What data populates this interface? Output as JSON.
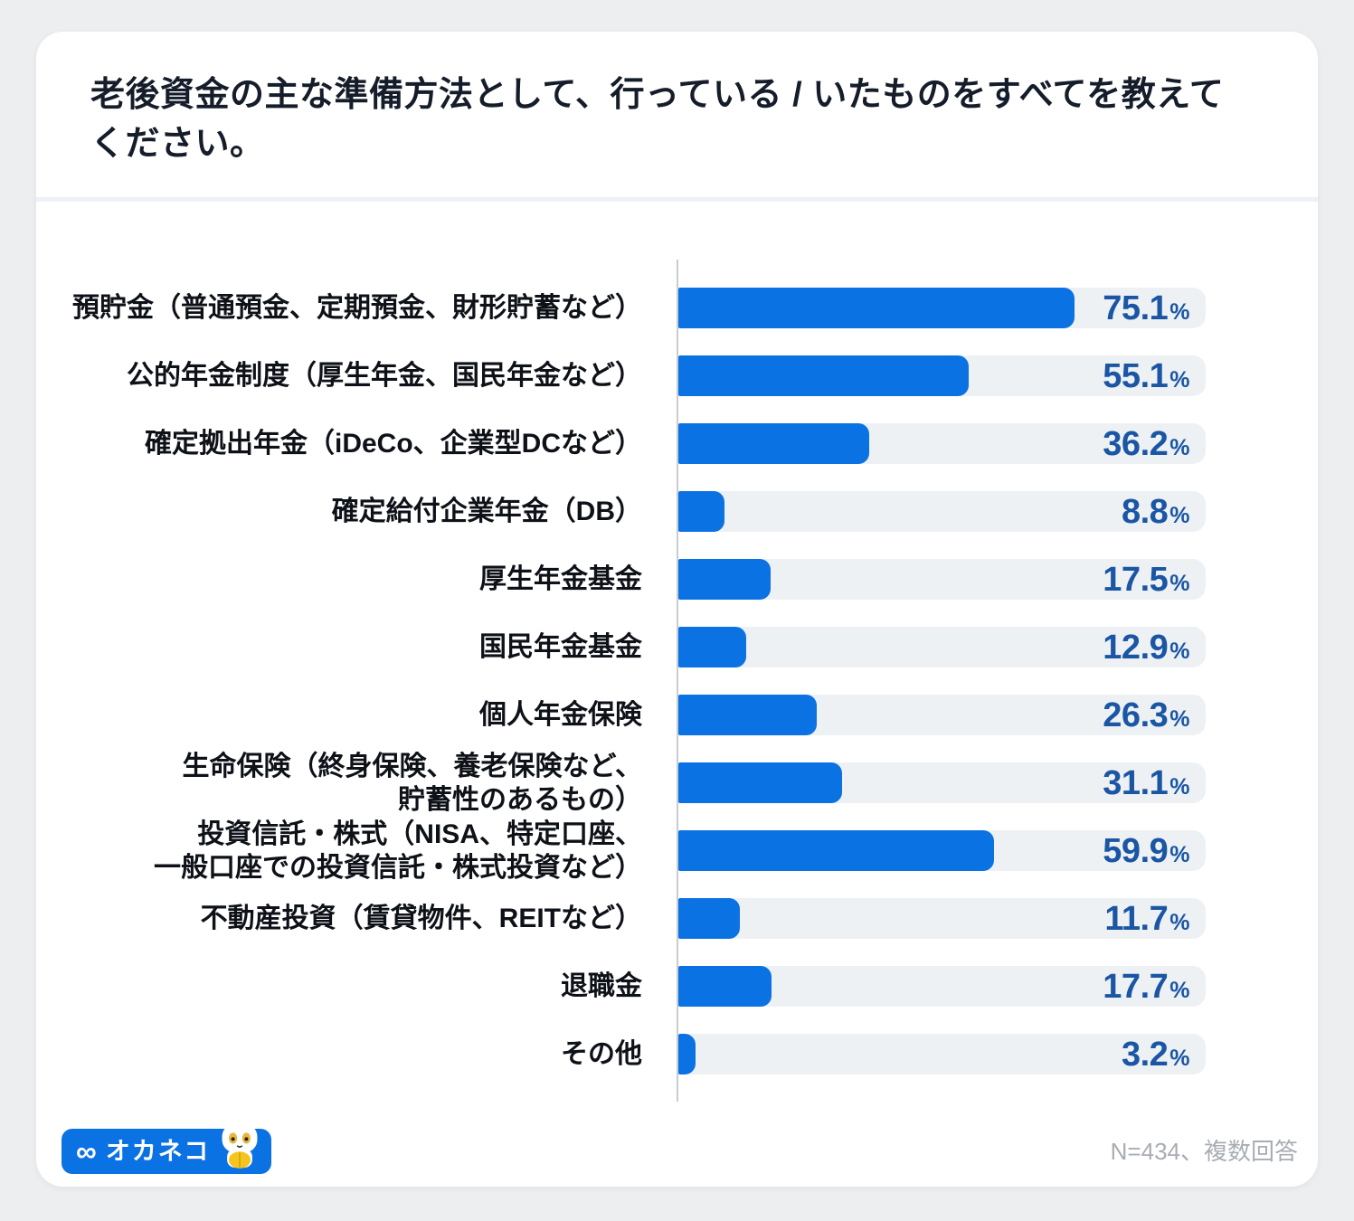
{
  "colors": {
    "page_bg": "#eceef0",
    "card_bg": "#ffffff",
    "bar": "#0b72e3",
    "track": "#eef1f4",
    "value_text": "#1a56a4",
    "axis": "#c7ccd1",
    "title_text": "#151d2b",
    "label_text": "#0e1218",
    "note_text": "#a8adb3",
    "divider": "#eef1f5",
    "logo_bg": "#0b72e3",
    "logo_text_color": "#ffffff"
  },
  "header": {
    "title": "老後資金の主な準備方法として、行っている / いたものをすべてを教えてください。"
  },
  "chart_data": {
    "type": "bar",
    "orientation": "horizontal",
    "title": "老後資金の主な準備方法として、行っている / いたものをすべてを教えてください。",
    "xlabel": "",
    "ylabel": "",
    "xlim": [
      0,
      100
    ],
    "unit": "%",
    "value_suffix": "%",
    "grid": false,
    "categories": [
      "預貯金（普通預金、定期預金、財形貯蓄など）",
      "公的年金制度（厚生年金、国民年金など）",
      "確定拠出年金（iDeCo、企業型DCなど）",
      "確定給付企業年金（DB）",
      "厚生年金基金",
      "国民年金基金",
      "個人年金保険",
      "生命保険（終身保険、養老保険など、貯蓄性のあるもの）",
      "投資信託・株式（NISA、特定口座、一般口座での投資信託・株式投資など）",
      "不動産投資（賃貸物件、REITなど）",
      "退職金",
      "その他"
    ],
    "category_lines": [
      [
        "預貯金（普通預金、定期預金、財形貯蓄など）"
      ],
      [
        "公的年金制度（厚生年金、国民年金など）"
      ],
      [
        "確定拠出年金（iDeCo、企業型DCなど）"
      ],
      [
        "確定給付企業年金（DB）"
      ],
      [
        "厚生年金基金"
      ],
      [
        "国民年金基金"
      ],
      [
        "個人年金保険"
      ],
      [
        "生命保険（終身保険、養老保険など、",
        "貯蓄性のあるもの）"
      ],
      [
        "投資信託・株式（NISA、特定口座、",
        "一般口座での投資信託・株式投資など）"
      ],
      [
        "不動産投資（賃貸物件、REITなど）"
      ],
      [
        "退職金"
      ],
      [
        "その他"
      ]
    ],
    "values": [
      75.1,
      55.1,
      36.2,
      8.8,
      17.5,
      12.9,
      26.3,
      31.1,
      59.9,
      11.7,
      17.7,
      3.2
    ]
  },
  "footer": {
    "logo_symbol": "∞",
    "logo_text": "オカネコ",
    "note": "N=434、複数回答"
  }
}
